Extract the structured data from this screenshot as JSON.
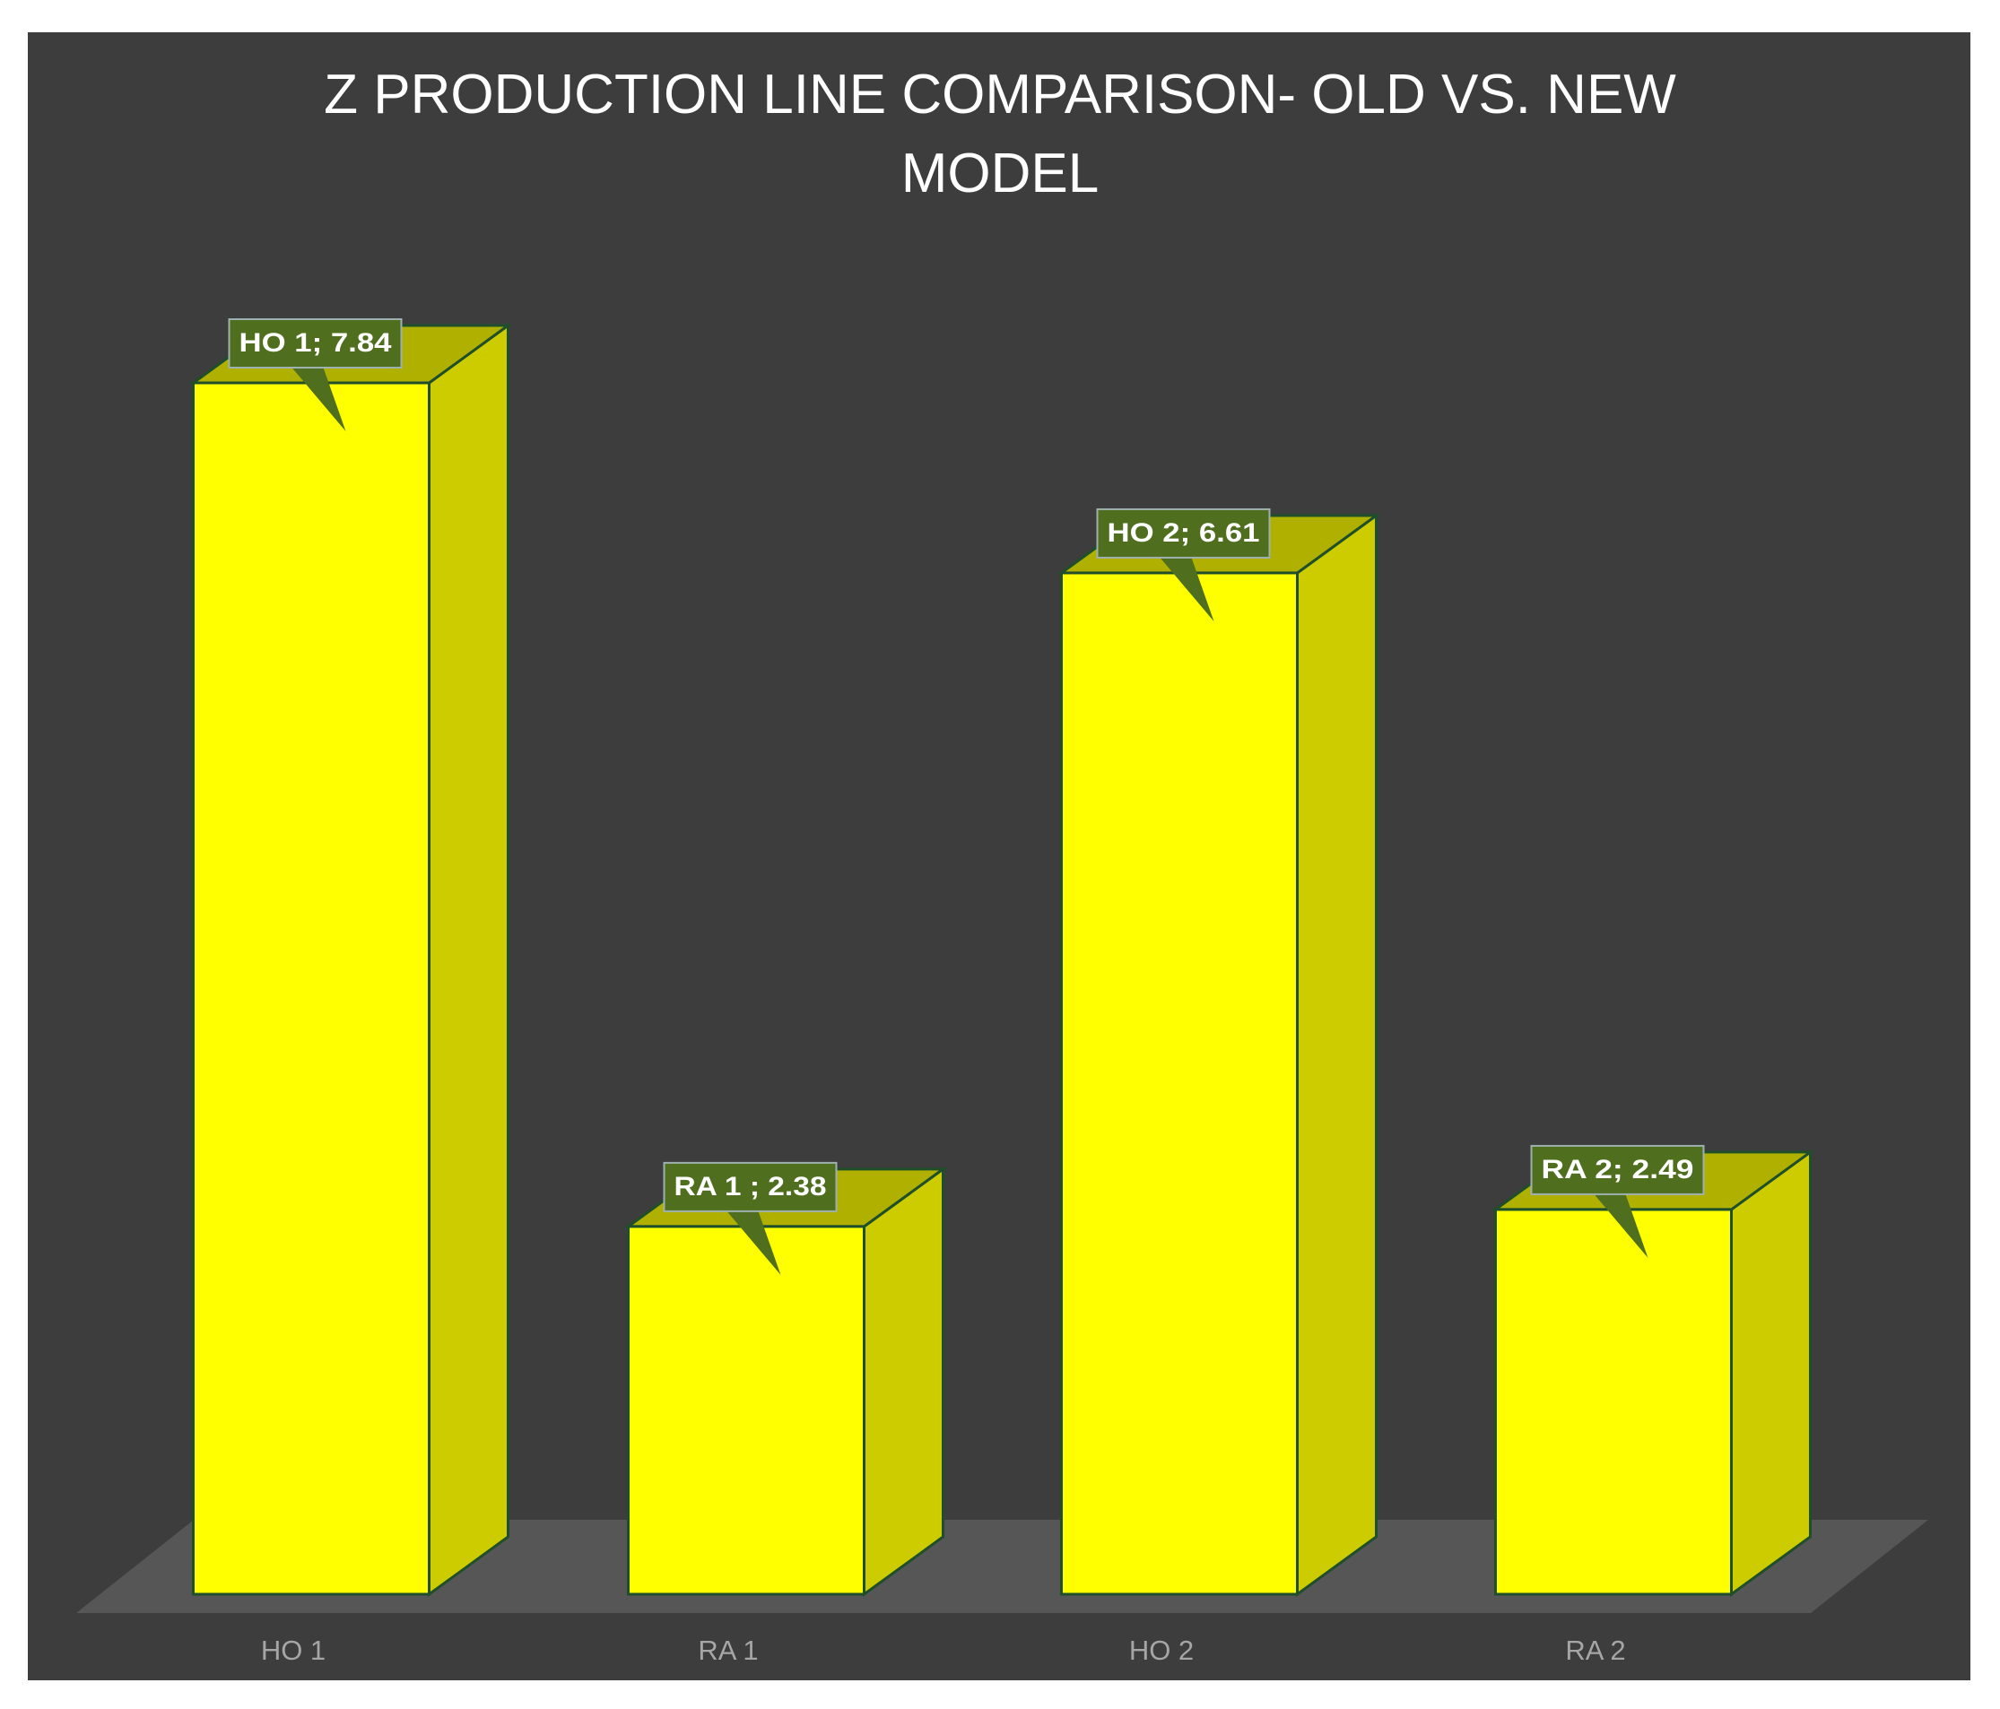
{
  "chart_data": {
    "type": "bar3d",
    "title": "Z PRODUCTION LINE COMPARISON- OLD VS. NEW MODEL",
    "categories": [
      "HO 1",
      "RA 1",
      "HO 2",
      "RA 2"
    ],
    "values": [
      7.84,
      2.38,
      6.61,
      2.49
    ],
    "value_labels": [
      "HO 1; 7.84",
      "RA 1 ; 2.38",
      "HO 2; 6.61",
      "RA 2; 2.49"
    ],
    "color": "#ffff00"
  }
}
